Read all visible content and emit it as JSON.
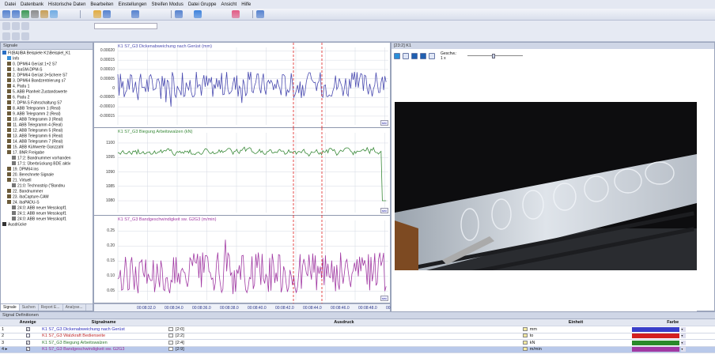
{
  "menu": [
    "Datei",
    "Datenbank",
    "Historische Daten",
    "Bearbeiten",
    "Einstellungen",
    "Streifen Modus",
    "Datei Gruppe",
    "Ansicht",
    "Hilfe"
  ],
  "signals_panel": {
    "title": "Signale",
    "tabs": [
      "Signale",
      "Suchen",
      "Report E...",
      "Analyse..."
    ],
    "items": [
      {
        "label": "FI(BA)IBA Beispiele K1\\Beispiel_K1",
        "color": "#2b6fc4",
        "level": 0
      },
      {
        "label": "Info",
        "color": "#3a8fd9",
        "level": 1
      },
      {
        "label": "0. DPM64 Gerüst 1+2 S7",
        "color": "#6b5b3a",
        "level": 1
      },
      {
        "label": "1. ibaSM-DPM-S",
        "color": "#6b5b3a",
        "level": 1
      },
      {
        "label": "2. DPM64 Gerüst 3+Schere S7",
        "color": "#6b5b3a",
        "level": 1
      },
      {
        "label": "3. DPM64 Bandzentrierung s7",
        "color": "#6b5b3a",
        "level": 1
      },
      {
        "label": "4. Padu 1",
        "color": "#6b5b3a",
        "level": 1
      },
      {
        "label": "5. ABB Planheit Zustandswerte",
        "color": "#6b5b3a",
        "level": 1
      },
      {
        "label": "6. Padu 2",
        "color": "#6b5b3a",
        "level": 1
      },
      {
        "label": "7. DPM-S Fahrschaltung S7",
        "color": "#6b5b3a",
        "level": 1
      },
      {
        "label": "8. ABB Telegramm 1 (Real)",
        "color": "#6b5b3a",
        "level": 1
      },
      {
        "label": "9. ABB Telegramm 2 (Real)",
        "color": "#6b5b3a",
        "level": 1
      },
      {
        "label": "10. ABB Telegramm 3 (Real)",
        "color": "#6b5b3a",
        "level": 1
      },
      {
        "label": "11. ABB Telegramm 4 (Real)",
        "color": "#6b5b3a",
        "level": 1
      },
      {
        "label": "12. ABB Telegramm 5 (Real)",
        "color": "#6b5b3a",
        "level": 1
      },
      {
        "label": "13. ABB Telegramm 6 (Real)",
        "color": "#6b5b3a",
        "level": 1
      },
      {
        "label": "14. ABB Telegramm 7 (Real)",
        "color": "#6b5b3a",
        "level": 1
      },
      {
        "label": "15. ABB Kühlwerte Ganzzahl",
        "color": "#6b5b3a",
        "level": 1
      },
      {
        "label": "17. BNR Freigabe",
        "color": "#6b5b3a",
        "level": 1
      },
      {
        "label": "17:2: Bandnummer vorhanden",
        "color": "#777777",
        "level": 2
      },
      {
        "label": "17:1: Überbrückung BDE aktiv",
        "color": "#777777",
        "level": 2
      },
      {
        "label": "19. DPM64 ins",
        "color": "#6b5b3a",
        "level": 1
      },
      {
        "label": "20. Berechnete Signale",
        "color": "#6b5b3a",
        "level": 1
      },
      {
        "label": "21. Virtuell",
        "color": "#6b5b3a",
        "level": 1
      },
      {
        "label": "21:0: Technostrip (\"Bandnu",
        "color": "#777777",
        "level": 2
      },
      {
        "label": "22. Bandnummer",
        "color": "#6b5b3a",
        "level": 1
      },
      {
        "label": "23. ibaCapture-CAM",
        "color": "#6b5b3a",
        "level": 1
      },
      {
        "label": "24. ibaPADU-S",
        "color": "#6b5b3a",
        "level": 1
      },
      {
        "label": "24:0: ABB neuer Messkopf1",
        "color": "#777777",
        "level": 2
      },
      {
        "label": "24:1: ABB neuer Messkopf1",
        "color": "#777777",
        "level": 2
      },
      {
        "label": "24:0: ABB neuer Messkopf1",
        "color": "#777777",
        "level": 2
      },
      {
        "label": "Ausdrücke",
        "color": "#333333",
        "level": 0
      }
    ]
  },
  "charts": [
    {
      "title": "K1 S7_G3 Dickenabweichung nach Gerüst (mm)",
      "color": "#4a4bb0",
      "ticks": [
        "0.00020",
        "0.00015",
        "0.00010",
        "0.00005",
        "0",
        "-0.00005",
        "-0.00010",
        "-0.00015"
      ],
      "tick_values": [
        0.0002,
        0.00015,
        0.0001,
        5e-05,
        0,
        -5e-05,
        -0.0001,
        -0.00015
      ],
      "ymin": -0.00018,
      "ymax": 0.00021,
      "base": 2e-05,
      "amp": 7e-05,
      "chip": "sec"
    },
    {
      "title": "K1 S7_G3 Biegung Arbeitswalzen (kN)",
      "color": "#3a8a3a",
      "ticks": [
        "1100",
        "1095",
        "1090",
        "1085",
        "1080"
      ],
      "tick_values": [
        1100,
        1095,
        1090,
        1085,
        1080
      ],
      "ymin": 1077,
      "ymax": 1103,
      "base": 1097,
      "amp": 2.2,
      "chip": "sec"
    },
    {
      "title": "K1 S7_G3 Bandgeschwindigkeit sw. G2G3 (m/min)",
      "color": "#a13aa3",
      "ticks": [
        "0.25",
        "0.20",
        "0.15",
        "0.10",
        "0.05"
      ],
      "tick_values": [
        0.25,
        0.2,
        0.15,
        0.1,
        0.05
      ],
      "ymin": 0.03,
      "ymax": 0.28,
      "base": 0.11,
      "amp": 0.07,
      "chip": "sec"
    }
  ],
  "x_ticks": [
    "00:08:32.0",
    "00:08:34.0",
    "00:08:36.0",
    "00:08:38.0",
    "00:08:40.0",
    "00:08:42.0",
    "00:08:44.0",
    "00:08:46.0",
    "00:08:48.0",
    "00:08..."
  ],
  "video": {
    "title": "[23:2] K1",
    "speed_label": "Geschw.:",
    "speed_value": "1 x"
  },
  "definitions": {
    "title": "Signal Definitionen",
    "headers": [
      "Anzeige",
      "Signalname",
      "Ausdruck",
      "Einheit",
      "Farbe"
    ],
    "rows": [
      {
        "num": "1",
        "checked": true,
        "name": "K1 S7_G3 Dickenabweichung nach Gerüst",
        "name_color": "#2e2fbd",
        "expr": "[2:0]",
        "unit": "mm",
        "color": "#3a3fc9"
      },
      {
        "num": "2",
        "checked": false,
        "name": "K1 S7_G3 Walzkraft Bedienseite",
        "name_color": "#c12a2a",
        "expr": "[2:2]",
        "unit": "to",
        "color": "#d32020"
      },
      {
        "num": "3",
        "checked": true,
        "name": "K1 S7_G3 Biegung Arbeitswalzen",
        "name_color": "#2f7a2f",
        "expr": "[2:4]",
        "unit": "kN",
        "color": "#2a8a2a"
      },
      {
        "num": "4 ▸",
        "checked": true,
        "name": "K1 S7_G3 Bandgeschwindigkeit sw. G2G3",
        "name_color": "#9a2f9a",
        "expr": "[2:9]",
        "unit": "m/min",
        "color": "#a13aa3"
      }
    ]
  }
}
